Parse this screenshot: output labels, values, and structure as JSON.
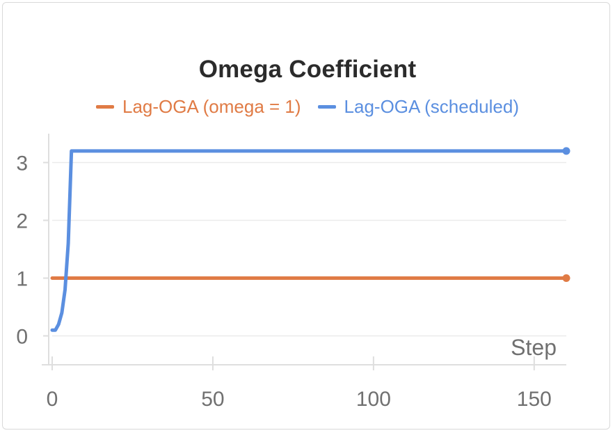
{
  "chart_data": {
    "type": "line",
    "title": "Omega Coefficient",
    "xlabel": "Step",
    "ylabel": "",
    "xlim": [
      0,
      160
    ],
    "ylim": [
      -0.5,
      3.5
    ],
    "xticks": [
      0,
      50,
      100,
      150
    ],
    "yticks": [
      0,
      1,
      2,
      3
    ],
    "grid": true,
    "legend_position": "top-center",
    "series": [
      {
        "name": "Lag-OGA (omega = 1)",
        "color": "#e07b45",
        "x": [
          0,
          160
        ],
        "y": [
          1,
          1
        ]
      },
      {
        "name": "Lag-OGA (scheduled)",
        "color": "#5b8fe0",
        "x": [
          0,
          1,
          2,
          3,
          4,
          5,
          6,
          160
        ],
        "y": [
          0.1,
          0.1,
          0.2,
          0.4,
          0.8,
          1.6,
          3.2,
          3.2
        ]
      }
    ]
  }
}
